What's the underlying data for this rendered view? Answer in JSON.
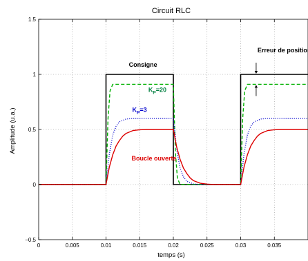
{
  "chart_data": {
    "type": "line",
    "title": "Circuit RLC",
    "xlabel": "temps (s)",
    "ylabel": "Amplitude (u.a.)",
    "xlim": [
      0,
      0.04
    ],
    "ylim": [
      -0.5,
      1.5
    ],
    "grid": true,
    "x_ticks": [
      0,
      0.005,
      0.01,
      0.015,
      0.02,
      0.025,
      0.03,
      0.035
    ],
    "x_tick_labels": [
      "0",
      "0.005",
      "0.01",
      "0.015",
      "0.02",
      "0.025",
      "0.03",
      "0.035"
    ],
    "y_ticks": [
      -0.5,
      0,
      0.5,
      1,
      1.5
    ],
    "y_tick_labels": [
      "−0.5",
      "0",
      "0.5",
      "1",
      "1.5"
    ],
    "series": [
      {
        "name": "Consigne",
        "color": "#000000",
        "style": "solid",
        "x": [
          0,
          0.01,
          0.01,
          0.02,
          0.02,
          0.03,
          0.03,
          0.04
        ],
        "y": [
          0,
          0,
          1,
          1,
          0,
          0,
          1,
          1
        ]
      },
      {
        "name": "K_P=20",
        "color": "#00b000",
        "style": "dashed",
        "x": [
          0,
          0.01,
          0.0103,
          0.0106,
          0.011,
          0.02,
          0.0203,
          0.0206,
          0.021,
          0.03,
          0.0303,
          0.0306,
          0.031,
          0.04
        ],
        "y": [
          0,
          0,
          0.6,
          0.85,
          0.91,
          0.91,
          0.3,
          0.06,
          0,
          0,
          0.6,
          0.85,
          0.91,
          0.91
        ]
      },
      {
        "name": "K_P=3",
        "color": "#0000cc",
        "style": "dotted",
        "x": [
          0,
          0.01,
          0.0105,
          0.011,
          0.0115,
          0.012,
          0.013,
          0.014,
          0.02,
          0.0205,
          0.021,
          0.0215,
          0.022,
          0.023,
          0.024,
          0.03,
          0.0305,
          0.031,
          0.0315,
          0.032,
          0.033,
          0.034,
          0.04
        ],
        "y": [
          0,
          0,
          0.28,
          0.45,
          0.53,
          0.57,
          0.595,
          0.6,
          0.6,
          0.32,
          0.15,
          0.07,
          0.03,
          0.005,
          0,
          0,
          0.28,
          0.45,
          0.53,
          0.57,
          0.595,
          0.6,
          0.6
        ]
      },
      {
        "name": "Boucle ouverte",
        "color": "#dd0000",
        "style": "solid",
        "x": [
          0,
          0.01,
          0.0105,
          0.011,
          0.0115,
          0.012,
          0.0125,
          0.013,
          0.014,
          0.015,
          0.016,
          0.02,
          0.0205,
          0.021,
          0.0215,
          0.022,
          0.0225,
          0.023,
          0.024,
          0.025,
          0.026,
          0.03,
          0.0305,
          0.031,
          0.0315,
          0.032,
          0.0325,
          0.033,
          0.034,
          0.035,
          0.036,
          0.04
        ],
        "y": [
          0,
          0,
          0.16,
          0.27,
          0.35,
          0.4,
          0.44,
          0.465,
          0.49,
          0.497,
          0.5,
          0.5,
          0.34,
          0.23,
          0.15,
          0.1,
          0.06,
          0.035,
          0.012,
          0.004,
          0,
          0,
          0.16,
          0.27,
          0.35,
          0.4,
          0.44,
          0.465,
          0.49,
          0.497,
          0.5,
          0.5
        ]
      }
    ],
    "annotations": [
      {
        "text": "Consigne",
        "color": "#000000",
        "x": 0.0134,
        "y": 1.07
      },
      {
        "text": "K_P=20",
        "color": "#007f3f",
        "x": 0.0163,
        "y": 0.84
      },
      {
        "text": "K_P=3",
        "color": "#0000cc",
        "x": 0.0139,
        "y": 0.66
      },
      {
        "text": "Boucle ouverte",
        "color": "#dd0000",
        "x": 0.0138,
        "y": 0.22
      },
      {
        "text": "Erreur de position",
        "color": "#000000",
        "x": 0.0325,
        "y": 1.2
      }
    ],
    "error_arrow": {
      "x": 0.0323,
      "y_top": 1.0,
      "y_bottom": 0.91
    }
  }
}
